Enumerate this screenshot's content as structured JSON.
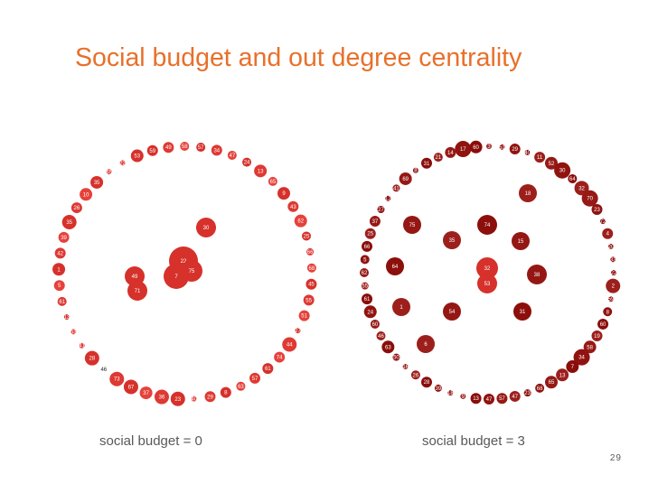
{
  "slide": {
    "title": "Social budget and out degree centrality",
    "page_number": "29"
  },
  "diagrams": [
    {
      "caption": "social budget = 0",
      "color": "#d6312b",
      "ring": [
        {
          "l": "59"
        },
        {
          "l": "49"
        },
        {
          "l": "58"
        },
        {
          "l": "57"
        },
        {
          "l": "34"
        },
        {
          "l": "47"
        },
        {
          "l": "24"
        },
        {
          "l": "13"
        },
        {
          "l": "65"
        },
        {
          "l": "9"
        },
        {
          "l": "43"
        },
        {
          "l": "62"
        },
        {
          "l": "25"
        },
        {
          "l": "66"
        },
        {
          "l": "68"
        },
        {
          "l": "45"
        },
        {
          "l": "55"
        },
        {
          "l": "51"
        },
        {
          "l": "27"
        },
        {
          "l": "44"
        },
        {
          "l": "74"
        },
        {
          "l": "61"
        },
        {
          "l": "57"
        },
        {
          "l": "63"
        },
        {
          "l": "8"
        },
        {
          "l": "29"
        },
        {
          "l": "40"
        },
        {
          "l": "23"
        },
        {
          "l": "36"
        },
        {
          "l": "37"
        },
        {
          "l": "67"
        },
        {
          "l": "73"
        },
        {
          "l": "46"
        },
        {
          "l": "28"
        },
        {
          "l": "41"
        },
        {
          "l": "53"
        },
        {
          "l": "13"
        },
        {
          "l": "61"
        },
        {
          "l": "5"
        },
        {
          "l": "1"
        },
        {
          "l": "42"
        },
        {
          "l": "39"
        },
        {
          "l": "35"
        },
        {
          "l": "26"
        },
        {
          "l": "10"
        },
        {
          "l": "35"
        },
        {
          "l": "65"
        },
        {
          "l": "22"
        },
        {
          "l": "53"
        }
      ],
      "inner": [
        {
          "l": "30"
        },
        {
          "l": "22"
        },
        {
          "l": "7"
        },
        {
          "l": "75"
        },
        {
          "l": "49"
        },
        {
          "l": "71"
        }
      ]
    },
    {
      "caption": "social budget = 3",
      "color": "#9c1f1c",
      "ring": [
        {
          "l": "3"
        },
        {
          "l": "51"
        },
        {
          "l": "29"
        },
        {
          "l": "40"
        },
        {
          "l": "11"
        },
        {
          "l": "52"
        },
        {
          "l": "30"
        },
        {
          "l": "64"
        },
        {
          "l": "32"
        },
        {
          "l": "70"
        },
        {
          "l": "23"
        },
        {
          "l": "72"
        },
        {
          "l": "4"
        },
        {
          "l": "20"
        },
        {
          "l": "33"
        },
        {
          "l": "22"
        },
        {
          "l": "2"
        },
        {
          "l": "59"
        },
        {
          "l": "8"
        },
        {
          "l": "60"
        },
        {
          "l": "19"
        },
        {
          "l": "58"
        },
        {
          "l": "34"
        },
        {
          "l": "7"
        },
        {
          "l": "13"
        },
        {
          "l": "65"
        },
        {
          "l": "68"
        },
        {
          "l": "23"
        },
        {
          "l": "47"
        },
        {
          "l": "57"
        },
        {
          "l": "47"
        },
        {
          "l": "13"
        },
        {
          "l": "9"
        },
        {
          "l": "18"
        },
        {
          "l": "39"
        },
        {
          "l": "28"
        },
        {
          "l": "26"
        },
        {
          "l": "16"
        },
        {
          "l": "50"
        },
        {
          "l": "63"
        },
        {
          "l": "46"
        },
        {
          "l": "60"
        },
        {
          "l": "24"
        },
        {
          "l": "61"
        },
        {
          "l": "55"
        },
        {
          "l": "62"
        },
        {
          "l": "5"
        },
        {
          "l": "66"
        },
        {
          "l": "25"
        },
        {
          "l": "37"
        },
        {
          "l": "27"
        },
        {
          "l": "12"
        },
        {
          "l": "41"
        },
        {
          "l": "69"
        },
        {
          "l": "8"
        },
        {
          "l": "31"
        },
        {
          "l": "21"
        },
        {
          "l": "14"
        },
        {
          "l": "17"
        },
        {
          "l": "60"
        }
      ],
      "inner": [
        {
          "l": "18"
        },
        {
          "l": "75"
        },
        {
          "l": "74"
        },
        {
          "l": "35"
        },
        {
          "l": "15"
        },
        {
          "l": "64"
        },
        {
          "l": "32"
        },
        {
          "l": "38"
        },
        {
          "l": "53"
        },
        {
          "l": "1"
        },
        {
          "l": "54"
        },
        {
          "l": "31"
        },
        {
          "l": "6"
        }
      ]
    }
  ]
}
